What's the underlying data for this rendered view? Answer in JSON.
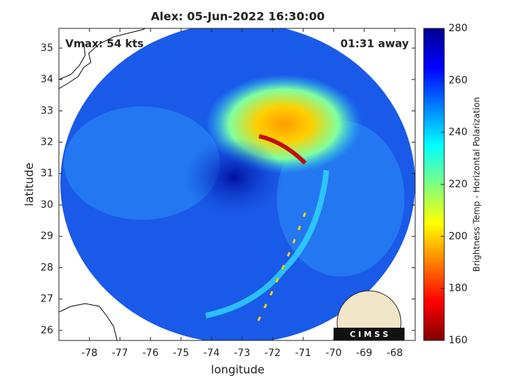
{
  "chart_data": {
    "type": "image",
    "title": "Alex: 05-Jun-2022 16:30:00",
    "xlabel": "longitude",
    "ylabel": "latitude",
    "xlim": [
      -79,
      -67.33
    ],
    "ylim": [
      25.68,
      35.63
    ],
    "xticks": [
      -78,
      -77,
      -76,
      -75,
      -74,
      -73,
      -72,
      -71,
      -70,
      -69,
      -68
    ],
    "yticks": [
      26,
      27,
      28,
      29,
      30,
      31,
      32,
      33,
      34,
      35
    ],
    "annotations": [
      "Vmax: 54 kts",
      "01:31 away"
    ],
    "logo": "C I M S S",
    "colorbar": {
      "label": "Brightness Temp - Horizontal Polarization",
      "colormap": "jet",
      "clim": [
        160,
        280
      ],
      "ticks": [
        160,
        180,
        200,
        220,
        240,
        260,
        280
      ]
    }
  }
}
